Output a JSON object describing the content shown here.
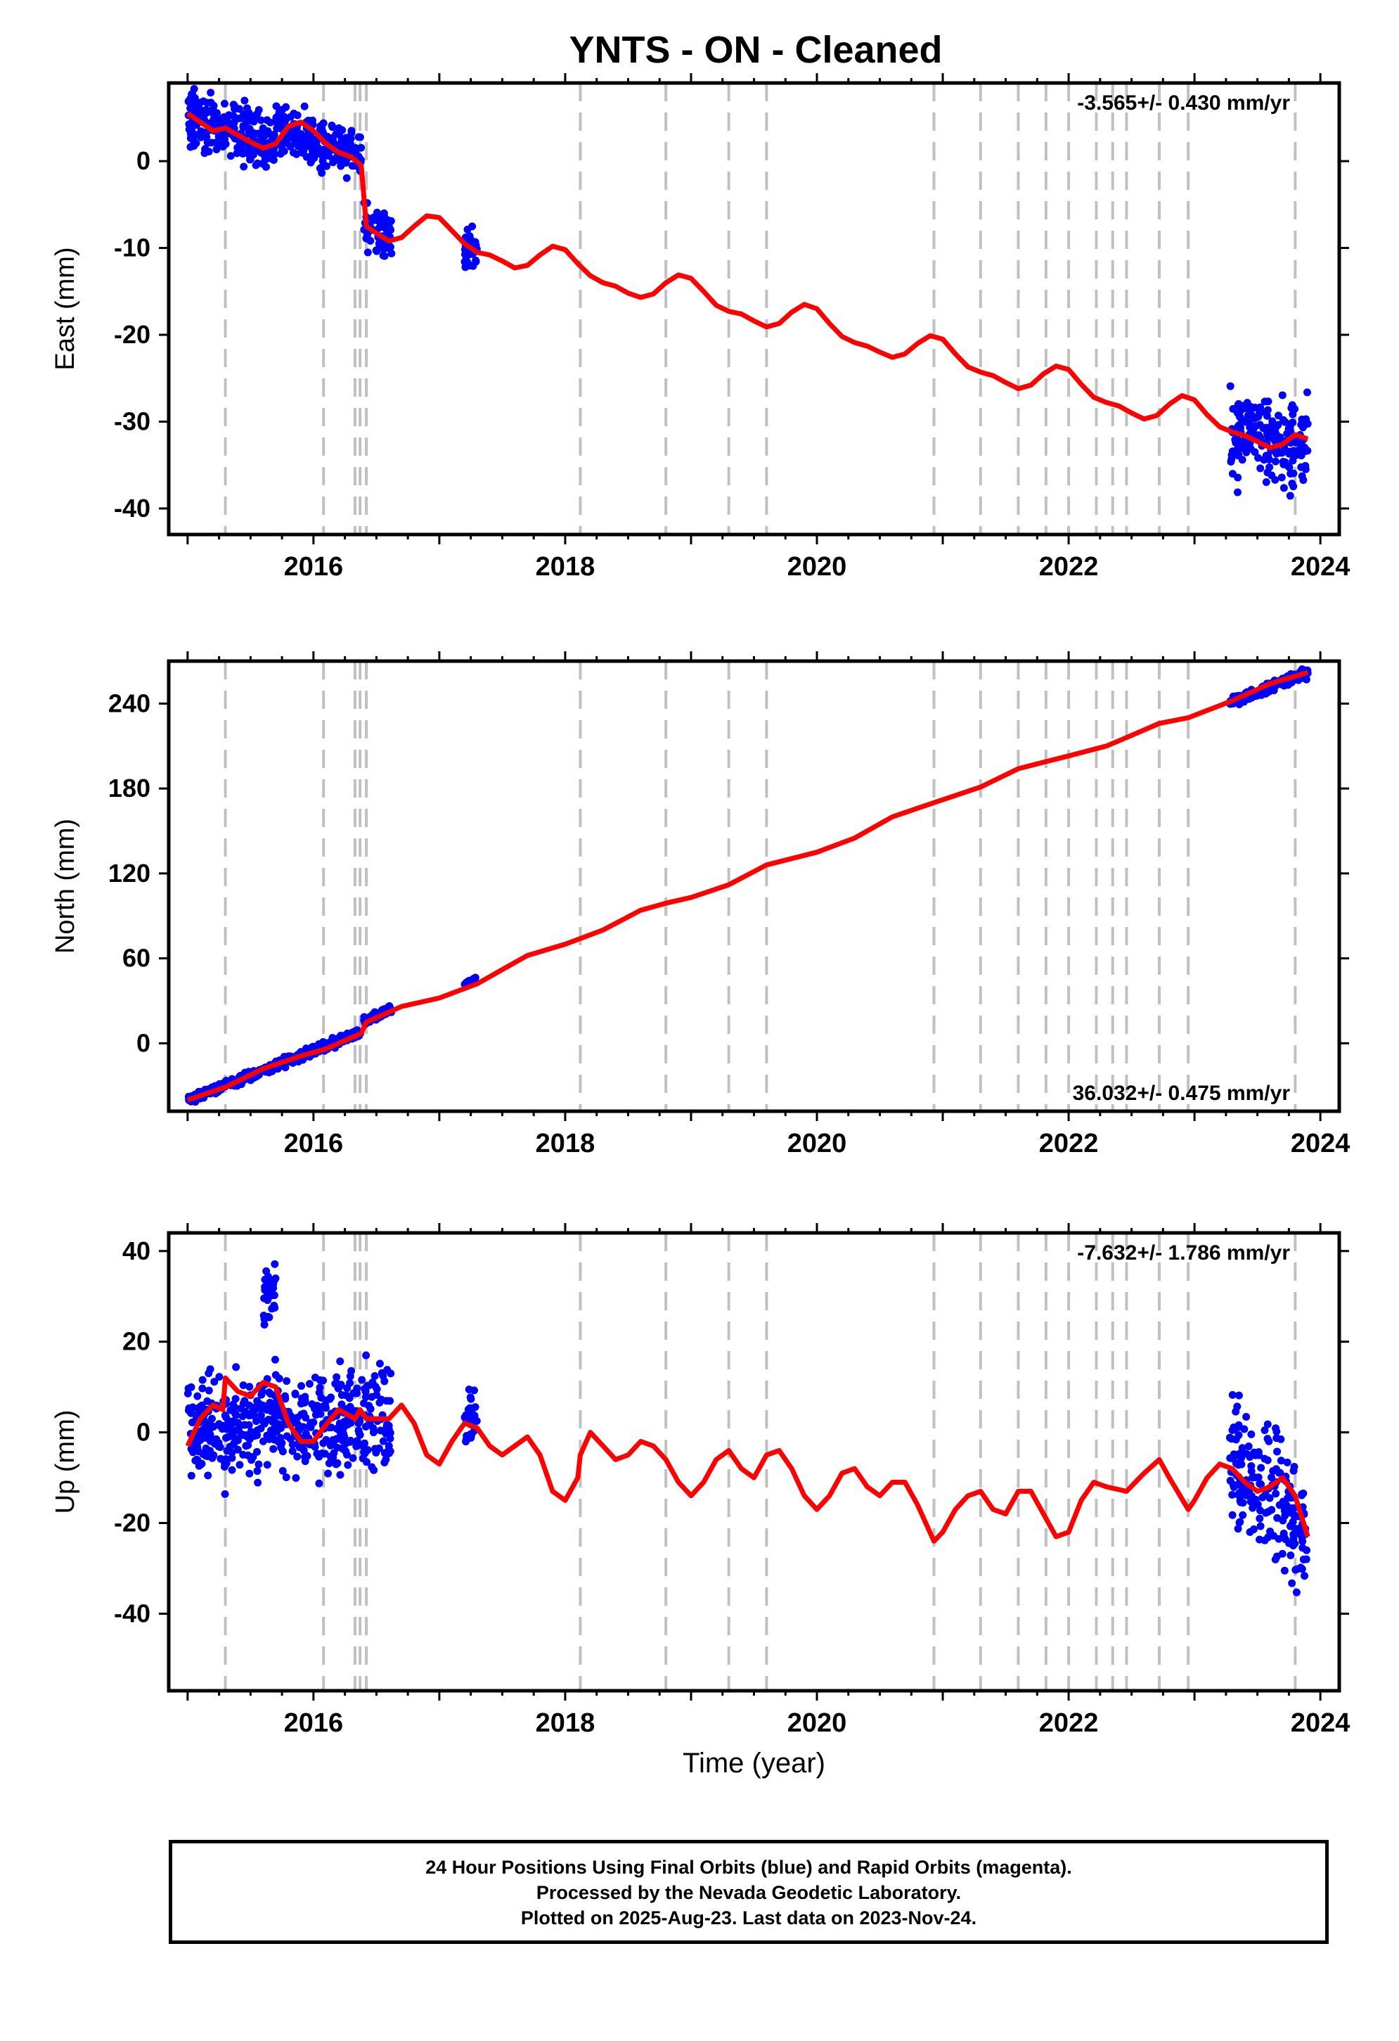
{
  "title": "YNTS  - ON - Cleaned",
  "footer": {
    "line1": "24 Hour Positions Using Final Orbits (blue) and Rapid Orbits (magenta).",
    "line2": "Processed by the Nevada Geodetic Laboratory.",
    "line3": "Plotted on 2025-Aug-23. Last data on 2023-Nov-24."
  },
  "colors": {
    "points": "#0000ff",
    "model": "#ff0000",
    "event_lines": "#c0c0c0",
    "frame": "#000000"
  },
  "chart_data": [
    {
      "type": "scatter",
      "panel": "east",
      "title": "",
      "xlabel": "",
      "ylabel": "East (mm)",
      "xlim": [
        2014.85,
        2024.15
      ],
      "ylim": [
        -43,
        9
      ],
      "yticks": [
        -40,
        -30,
        -20,
        -10,
        0
      ],
      "xticks": [
        2016,
        2018,
        2020,
        2022,
        2024
      ],
      "annotation": "-3.565+/- 0.430 mm/yr",
      "event_lines": [
        2015.3,
        2016.08,
        2016.33,
        2016.37,
        2016.42,
        2018.12,
        2018.8,
        2019.3,
        2019.6,
        2020.93,
        2021.3,
        2021.6,
        2021.82,
        2022.0,
        2022.22,
        2022.35,
        2022.46,
        2022.72,
        2022.95,
        2023.8
      ],
      "data_clusters": [
        {
          "x_range": [
            2015.0,
            2015.7
          ],
          "y_trend": [
            5.0,
            2.0
          ],
          "spread": 3.0
        },
        {
          "x_range": [
            2015.7,
            2016.38
          ],
          "y_trend": [
            4.0,
            0.5
          ],
          "spread": 2.5
        },
        {
          "x_range": [
            2016.4,
            2016.62
          ],
          "y_trend": [
            -7.5,
            -9.0
          ],
          "spread": 3.0
        },
        {
          "x_range": [
            2017.2,
            2017.3
          ],
          "y_trend": [
            -10.0,
            -10.5
          ],
          "spread": 3.0
        },
        {
          "x_range": [
            2023.28,
            2023.9
          ],
          "y_trend": [
            -31.0,
            -33.0
          ],
          "spread": 5.0
        }
      ],
      "model_line": [
        [
          2015.0,
          5.5
        ],
        [
          2015.1,
          4.5
        ],
        [
          2015.2,
          3.5
        ],
        [
          2015.3,
          3.8
        ],
        [
          2015.4,
          3.0
        ],
        [
          2015.5,
          2.2
        ],
        [
          2015.6,
          1.5
        ],
        [
          2015.7,
          2.0
        ],
        [
          2015.8,
          4.0
        ],
        [
          2015.9,
          4.5
        ],
        [
          2016.0,
          3.5
        ],
        [
          2016.1,
          2.0
        ],
        [
          2016.2,
          1.0
        ],
        [
          2016.3,
          0.5
        ],
        [
          2016.38,
          -0.5
        ],
        [
          2016.42,
          -7.5
        ],
        [
          2016.5,
          -8.3
        ],
        [
          2016.6,
          -9.2
        ],
        [
          2016.7,
          -8.8
        ],
        [
          2016.8,
          -7.5
        ],
        [
          2016.9,
          -6.3
        ],
        [
          2017.0,
          -6.5
        ],
        [
          2017.1,
          -8.0
        ],
        [
          2017.2,
          -9.5
        ],
        [
          2017.3,
          -10.5
        ],
        [
          2017.4,
          -10.8
        ],
        [
          2017.5,
          -11.5
        ],
        [
          2017.6,
          -12.3
        ],
        [
          2017.7,
          -12.0
        ],
        [
          2017.8,
          -10.8
        ],
        [
          2017.9,
          -9.8
        ],
        [
          2018.0,
          -10.2
        ],
        [
          2018.1,
          -11.8
        ],
        [
          2018.2,
          -13.2
        ],
        [
          2018.3,
          -14.0
        ],
        [
          2018.4,
          -14.4
        ],
        [
          2018.5,
          -15.2
        ],
        [
          2018.6,
          -15.7
        ],
        [
          2018.7,
          -15.3
        ],
        [
          2018.8,
          -14.0
        ],
        [
          2018.9,
          -13.1
        ],
        [
          2019.0,
          -13.5
        ],
        [
          2019.1,
          -15.0
        ],
        [
          2019.2,
          -16.6
        ],
        [
          2019.3,
          -17.3
        ],
        [
          2019.4,
          -17.6
        ],
        [
          2019.5,
          -18.4
        ],
        [
          2019.6,
          -19.1
        ],
        [
          2019.7,
          -18.7
        ],
        [
          2019.8,
          -17.4
        ],
        [
          2019.9,
          -16.5
        ],
        [
          2020.0,
          -17.0
        ],
        [
          2020.1,
          -18.7
        ],
        [
          2020.2,
          -20.2
        ],
        [
          2020.3,
          -20.9
        ],
        [
          2020.4,
          -21.3
        ],
        [
          2020.5,
          -22.0
        ],
        [
          2020.6,
          -22.6
        ],
        [
          2020.7,
          -22.2
        ],
        [
          2020.8,
          -21.0
        ],
        [
          2020.9,
          -20.1
        ],
        [
          2021.0,
          -20.5
        ],
        [
          2021.1,
          -22.2
        ],
        [
          2021.2,
          -23.7
        ],
        [
          2021.3,
          -24.3
        ],
        [
          2021.4,
          -24.7
        ],
        [
          2021.5,
          -25.5
        ],
        [
          2021.6,
          -26.2
        ],
        [
          2021.7,
          -25.8
        ],
        [
          2021.8,
          -24.5
        ],
        [
          2021.9,
          -23.6
        ],
        [
          2022.0,
          -24.0
        ],
        [
          2022.1,
          -25.7
        ],
        [
          2022.2,
          -27.2
        ],
        [
          2022.3,
          -27.8
        ],
        [
          2022.4,
          -28.2
        ],
        [
          2022.5,
          -29.0
        ],
        [
          2022.6,
          -29.7
        ],
        [
          2022.7,
          -29.3
        ],
        [
          2022.8,
          -28.0
        ],
        [
          2022.9,
          -27.0
        ],
        [
          2023.0,
          -27.5
        ],
        [
          2023.1,
          -29.2
        ],
        [
          2023.2,
          -30.6
        ],
        [
          2023.3,
          -31.2
        ],
        [
          2023.4,
          -31.6
        ],
        [
          2023.5,
          -32.3
        ],
        [
          2023.6,
          -33.0
        ],
        [
          2023.7,
          -32.6
        ],
        [
          2023.8,
          -31.5
        ],
        [
          2023.9,
          -32.0
        ]
      ]
    },
    {
      "type": "scatter",
      "panel": "north",
      "title": "",
      "xlabel": "",
      "ylabel": "North (mm)",
      "xlim": [
        2014.85,
        2024.15
      ],
      "ylim": [
        -48,
        270
      ],
      "yticks": [
        0,
        60,
        120,
        180,
        240
      ],
      "xticks": [
        2016,
        2018,
        2020,
        2022,
        2024
      ],
      "annotation": "36.032+/- 0.475 mm/yr",
      "event_lines": [
        2015.3,
        2016.08,
        2016.33,
        2016.37,
        2016.42,
        2018.12,
        2018.8,
        2019.3,
        2019.6,
        2020.93,
        2021.3,
        2021.6,
        2021.82,
        2022.0,
        2022.22,
        2022.35,
        2022.46,
        2022.72,
        2022.95,
        2023.8
      ],
      "data_clusters": [
        {
          "x_range": [
            2015.0,
            2016.38
          ],
          "y_trend": [
            -40.0,
            8.0
          ],
          "spread": 3.0
        },
        {
          "x_range": [
            2016.4,
            2016.62
          ],
          "y_trend": [
            15.0,
            24.0
          ],
          "spread": 3.0
        },
        {
          "x_range": [
            2017.2,
            2017.3
          ],
          "y_trend": [
            42.0,
            45.0
          ],
          "spread": 3.0
        },
        {
          "x_range": [
            2023.28,
            2023.9
          ],
          "y_trend": [
            240.0,
            262.0
          ],
          "spread": 3.5
        }
      ],
      "model_line": [
        [
          2015.0,
          -40
        ],
        [
          2015.3,
          -31
        ],
        [
          2015.6,
          -18
        ],
        [
          2015.9,
          -9
        ],
        [
          2016.1,
          -4
        ],
        [
          2016.38,
          7
        ],
        [
          2016.42,
          15
        ],
        [
          2016.6,
          22
        ],
        [
          2016.7,
          26
        ],
        [
          2017.0,
          32
        ],
        [
          2017.3,
          42
        ],
        [
          2017.5,
          52
        ],
        [
          2017.7,
          62
        ],
        [
          2018.0,
          70
        ],
        [
          2018.12,
          74
        ],
        [
          2018.3,
          80
        ],
        [
          2018.6,
          94
        ],
        [
          2018.8,
          99
        ],
        [
          2019.0,
          103
        ],
        [
          2019.3,
          112
        ],
        [
          2019.6,
          126
        ],
        [
          2020.0,
          135
        ],
        [
          2020.3,
          145
        ],
        [
          2020.6,
          160
        ],
        [
          2020.93,
          170
        ],
        [
          2021.3,
          181
        ],
        [
          2021.6,
          194
        ],
        [
          2021.82,
          199
        ],
        [
          2022.0,
          203
        ],
        [
          2022.3,
          210
        ],
        [
          2022.46,
          216
        ],
        [
          2022.72,
          226
        ],
        [
          2022.95,
          230
        ],
        [
          2023.3,
          242
        ],
        [
          2023.6,
          254
        ],
        [
          2023.9,
          262
        ]
      ]
    },
    {
      "type": "scatter",
      "panel": "up",
      "title": "",
      "xlabel": "Time (year)",
      "ylabel": "Up (mm)",
      "xlim": [
        2014.85,
        2024.15
      ],
      "ylim": [
        -57,
        44
      ],
      "yticks": [
        -40,
        -20,
        0,
        20,
        40
      ],
      "xticks": [
        2016,
        2018,
        2020,
        2022,
        2024
      ],
      "annotation": "-7.632+/- 1.786 mm/yr",
      "event_lines": [
        2015.3,
        2016.08,
        2016.33,
        2016.37,
        2016.42,
        2018.12,
        2018.8,
        2019.3,
        2019.6,
        2020.93,
        2021.3,
        2021.6,
        2021.82,
        2022.0,
        2022.22,
        2022.35,
        2022.46,
        2022.72,
        2022.95,
        2023.8
      ],
      "data_clusters": [
        {
          "x_range": [
            2015.0,
            2016.62
          ],
          "y_trend": [
            0.0,
            3.0
          ],
          "spread": 11.0
        },
        {
          "x_range": [
            2015.6,
            2015.7
          ],
          "y_trend": [
            27.0,
            33.0
          ],
          "spread": 7.0
        },
        {
          "x_range": [
            2017.2,
            2017.3
          ],
          "y_trend": [
            3.0,
            5.0
          ],
          "spread": 6.0
        },
        {
          "x_range": [
            2023.28,
            2023.9
          ],
          "y_trend": [
            -5.0,
            -22.0
          ],
          "spread": 13.0
        }
      ],
      "model_line": [
        [
          2015.0,
          -3
        ],
        [
          2015.1,
          3
        ],
        [
          2015.2,
          6
        ],
        [
          2015.28,
          5
        ],
        [
          2015.3,
          12
        ],
        [
          2015.4,
          9
        ],
        [
          2015.5,
          8
        ],
        [
          2015.6,
          11
        ],
        [
          2015.7,
          10
        ],
        [
          2015.8,
          2
        ],
        [
          2015.9,
          -2
        ],
        [
          2016.0,
          -2
        ],
        [
          2016.08,
          1
        ],
        [
          2016.2,
          5
        ],
        [
          2016.33,
          3
        ],
        [
          2016.37,
          5
        ],
        [
          2016.42,
          3
        ],
        [
          2016.6,
          3
        ],
        [
          2016.7,
          6
        ],
        [
          2016.8,
          2
        ],
        [
          2016.9,
          -5
        ],
        [
          2017.0,
          -7
        ],
        [
          2017.1,
          -2
        ],
        [
          2017.2,
          2
        ],
        [
          2017.3,
          1
        ],
        [
          2017.4,
          -3
        ],
        [
          2017.5,
          -5
        ],
        [
          2017.6,
          -3
        ],
        [
          2017.7,
          -1
        ],
        [
          2017.8,
          -5
        ],
        [
          2017.9,
          -13
        ],
        [
          2018.0,
          -15
        ],
        [
          2018.1,
          -10
        ],
        [
          2018.12,
          -5
        ],
        [
          2018.2,
          0
        ],
        [
          2018.3,
          -3
        ],
        [
          2018.4,
          -6
        ],
        [
          2018.5,
          -5
        ],
        [
          2018.6,
          -2
        ],
        [
          2018.7,
          -3
        ],
        [
          2018.8,
          -6
        ],
        [
          2018.9,
          -11
        ],
        [
          2019.0,
          -14
        ],
        [
          2019.1,
          -11
        ],
        [
          2019.2,
          -6
        ],
        [
          2019.3,
          -4
        ],
        [
          2019.4,
          -8
        ],
        [
          2019.5,
          -10
        ],
        [
          2019.6,
          -5
        ],
        [
          2019.7,
          -4
        ],
        [
          2019.8,
          -8
        ],
        [
          2019.9,
          -14
        ],
        [
          2020.0,
          -17
        ],
        [
          2020.1,
          -14
        ],
        [
          2020.2,
          -9
        ],
        [
          2020.3,
          -8
        ],
        [
          2020.4,
          -12
        ],
        [
          2020.5,
          -14
        ],
        [
          2020.6,
          -11
        ],
        [
          2020.7,
          -11
        ],
        [
          2020.8,
          -16
        ],
        [
          2020.93,
          -24
        ],
        [
          2021.0,
          -22
        ],
        [
          2021.1,
          -17
        ],
        [
          2021.2,
          -14
        ],
        [
          2021.3,
          -13
        ],
        [
          2021.4,
          -17
        ],
        [
          2021.5,
          -18
        ],
        [
          2021.6,
          -13
        ],
        [
          2021.7,
          -13
        ],
        [
          2021.82,
          -19
        ],
        [
          2021.9,
          -23
        ],
        [
          2022.0,
          -22
        ],
        [
          2022.1,
          -15
        ],
        [
          2022.2,
          -11
        ],
        [
          2022.3,
          -12
        ],
        [
          2022.46,
          -13
        ],
        [
          2022.6,
          -9
        ],
        [
          2022.72,
          -6
        ],
        [
          2022.8,
          -10
        ],
        [
          2022.95,
          -17
        ],
        [
          2023.0,
          -15
        ],
        [
          2023.1,
          -10
        ],
        [
          2023.2,
          -7
        ],
        [
          2023.3,
          -8
        ],
        [
          2023.4,
          -11
        ],
        [
          2023.5,
          -13
        ],
        [
          2023.6,
          -12
        ],
        [
          2023.7,
          -10
        ],
        [
          2023.8,
          -14
        ],
        [
          2023.9,
          -23
        ]
      ]
    }
  ]
}
